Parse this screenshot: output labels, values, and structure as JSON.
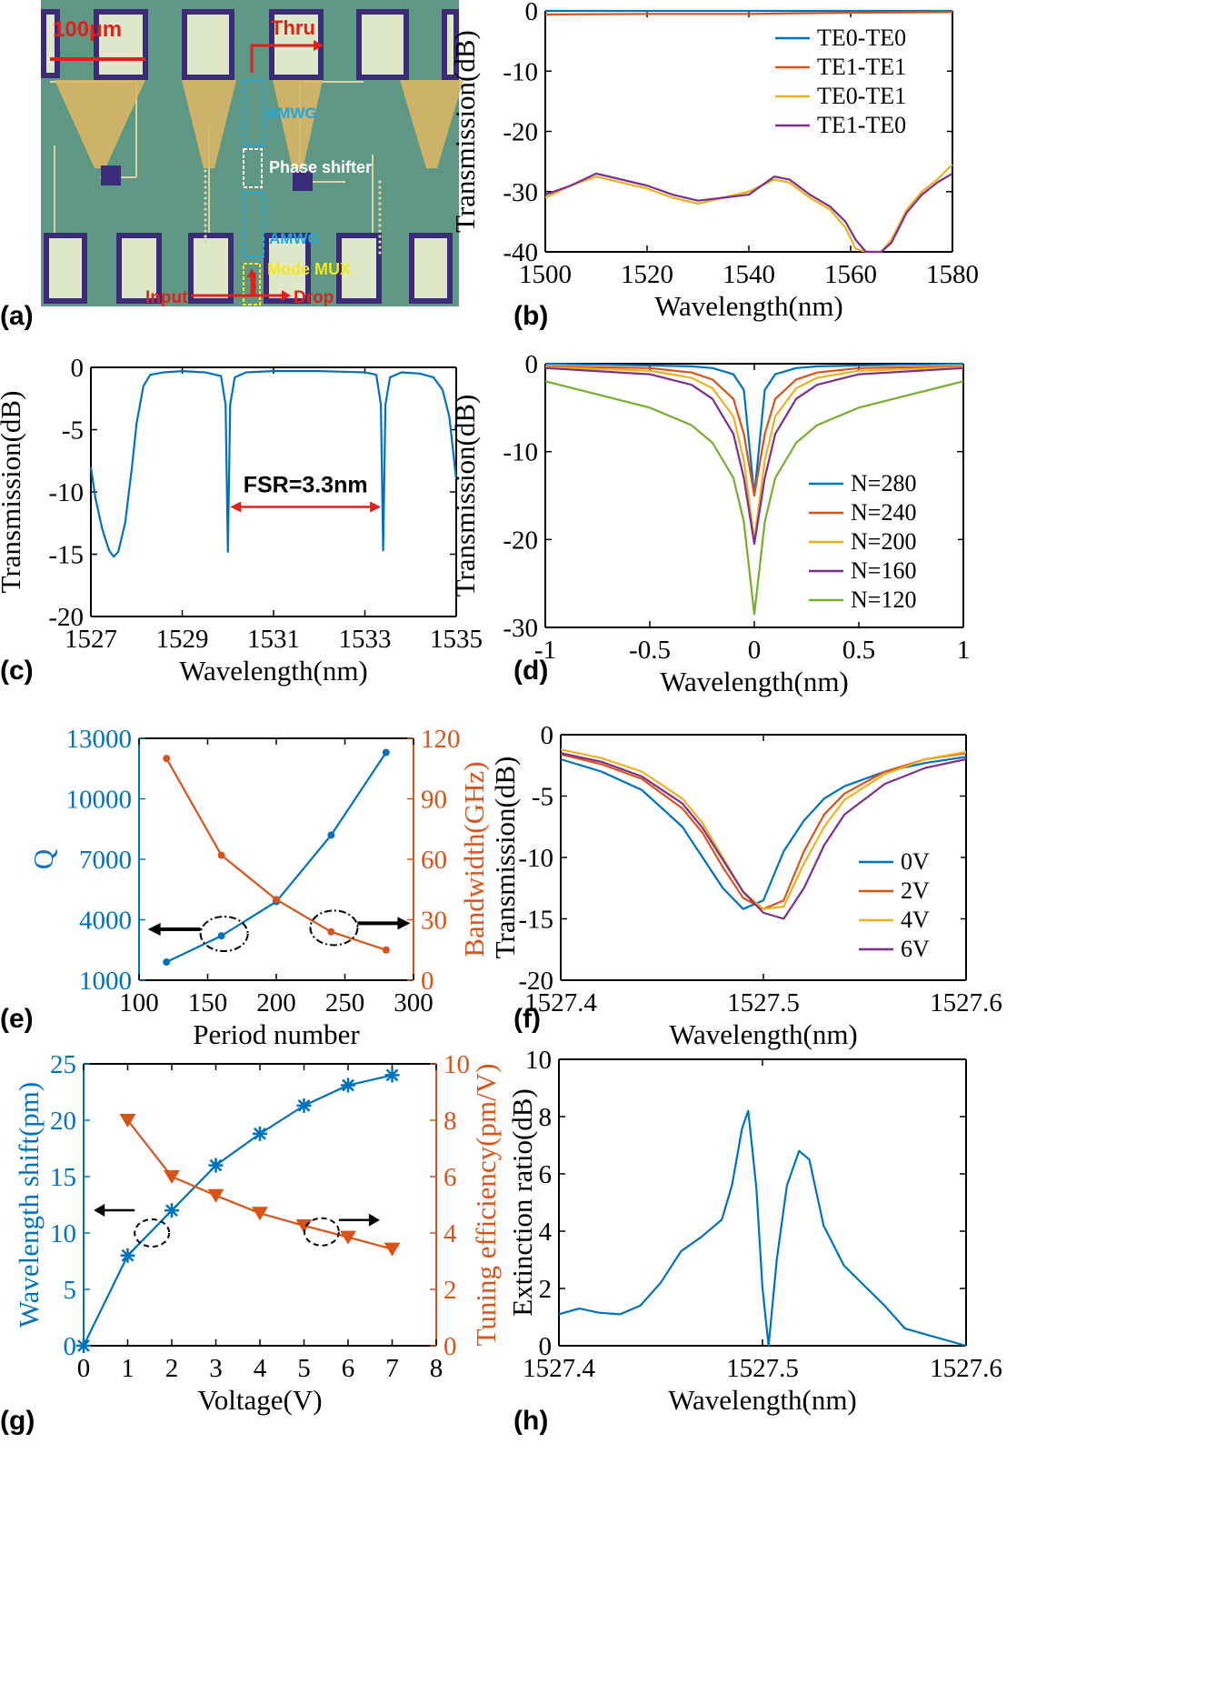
{
  "colors": {
    "blue": "#0072BD",
    "orange": "#D95319",
    "yellow": "#EDB120",
    "purple": "#7E2F8E",
    "green": "#77AC30",
    "black": "#000000",
    "red": "#E0201B",
    "cyan": "#1EA7E1",
    "annot_yellow": "#F2EA1A"
  },
  "panel_labels": [
    "(a)",
    "(b)",
    "(c)",
    "(d)",
    "(e)",
    "(f)",
    "(g)",
    "(h)"
  ],
  "micrograph": {
    "scale_bar": "100μm",
    "thru": "Thru",
    "amwg_top": "AMWG",
    "phase_shifter": "Phase shifter",
    "amwg_bottom": "AMWG",
    "mode_mux": "Mode MUX",
    "input": "Input",
    "drop": "Drop"
  },
  "chart_data": [
    {
      "id": "b",
      "type": "line",
      "xlabel": "Wavelength(nm)",
      "ylabel": "Transmission(dB)",
      "xlim": [
        1500,
        1580
      ],
      "ylim": [
        -40,
        0
      ],
      "xticks": [
        1500,
        1520,
        1540,
        1560,
        1580
      ],
      "yticks": [
        0,
        -10,
        -20,
        -30,
        -40
      ],
      "legend": "top-right",
      "series": [
        {
          "name": "TE0-TE0",
          "color": "#0072BD",
          "x": [
            1500,
            1520,
            1540,
            1560,
            1580
          ],
          "y": [
            0,
            0.1,
            0,
            0.3,
            0.5
          ]
        },
        {
          "name": "TE1-TE1",
          "color": "#D95319",
          "x": [
            1500,
            1520,
            1540,
            1560,
            1580
          ],
          "y": [
            -0.6,
            -0.5,
            -0.5,
            -0.3,
            -0.2
          ]
        },
        {
          "name": "TE0-TE1",
          "color": "#EDB120",
          "x": [
            1500,
            1505,
            1510,
            1515,
            1520,
            1525,
            1530,
            1535,
            1540,
            1545,
            1548,
            1552,
            1556,
            1559,
            1561,
            1563,
            1566,
            1568,
            1571,
            1574,
            1577,
            1580
          ],
          "y": [
            -31,
            -29,
            -27.5,
            -28.5,
            -29.5,
            -31,
            -32,
            -31,
            -30,
            -28,
            -28.5,
            -31,
            -33,
            -36,
            -39.5,
            -40,
            -40,
            -38,
            -33,
            -30,
            -28,
            -25.5
          ]
        },
        {
          "name": "TE1-TE0",
          "color": "#7E2F8E",
          "x": [
            1500,
            1505,
            1510,
            1515,
            1520,
            1525,
            1530,
            1535,
            1540,
            1545,
            1548,
            1552,
            1556,
            1559,
            1561,
            1563,
            1566,
            1568,
            1571,
            1574,
            1577,
            1580
          ],
          "y": [
            -30.5,
            -29,
            -27,
            -28,
            -29,
            -30.5,
            -31.5,
            -31,
            -30.5,
            -27.5,
            -28,
            -30.5,
            -32.5,
            -35,
            -38,
            -40,
            -40,
            -38.5,
            -33.5,
            -30.5,
            -28.5,
            -27
          ]
        }
      ]
    },
    {
      "id": "c",
      "type": "line",
      "xlabel": "Wavelength(nm)",
      "ylabel": "Transmission(dB)",
      "xlim": [
        1527,
        1535
      ],
      "ylim": [
        -20,
        0
      ],
      "xticks": [
        1527,
        1529,
        1531,
        1533,
        1535
      ],
      "yticks": [
        0,
        -5,
        -10,
        -15,
        -20
      ],
      "annotation": "FSR=3.3nm",
      "series": [
        {
          "color": "#0072BD",
          "x": [
            1527,
            1527.1,
            1527.25,
            1527.4,
            1527.5,
            1527.6,
            1527.75,
            1527.9,
            1528,
            1528.15,
            1528.3,
            1528.6,
            1529,
            1529.5,
            1529.85,
            1529.95,
            1530,
            1530.05,
            1530.15,
            1530.4,
            1531,
            1532,
            1533,
            1533.25,
            1533.35,
            1533.4,
            1533.45,
            1533.55,
            1533.8,
            1534.2,
            1534.5,
            1534.7,
            1534.85,
            1535
          ],
          "y": [
            -8,
            -10.5,
            -13,
            -14.7,
            -15.2,
            -14.8,
            -12.5,
            -8,
            -4.5,
            -1.5,
            -0.6,
            -0.4,
            -0.3,
            -0.4,
            -0.7,
            -3,
            -14.8,
            -3,
            -0.8,
            -0.4,
            -0.3,
            -0.3,
            -0.4,
            -0.6,
            -3,
            -14.7,
            -3,
            -0.8,
            -0.4,
            -0.5,
            -0.8,
            -1.8,
            -4,
            -9
          ]
        }
      ]
    },
    {
      "id": "d",
      "type": "line",
      "xlabel": "Wavelength(nm)",
      "ylabel": "Transmission(dB)",
      "xlim": [
        -1,
        1
      ],
      "ylim": [
        -30,
        0
      ],
      "xticks": [
        -1,
        -0.5,
        0,
        0.5,
        1
      ],
      "yticks": [
        0,
        -10,
        -20,
        -30
      ],
      "legend": "bottom-right",
      "x": [
        -1,
        -0.5,
        -0.3,
        -0.2,
        -0.1,
        -0.05,
        0,
        0.05,
        0.1,
        0.2,
        0.3,
        0.5,
        1
      ],
      "series": [
        {
          "name": "N=280",
          "color": "#0072BD",
          "y": [
            0,
            -0.2,
            -0.3,
            -0.5,
            -1.2,
            -3,
            -15,
            -3,
            -1.2,
            -0.5,
            -0.3,
            -0.2,
            0
          ]
        },
        {
          "name": "N=240",
          "color": "#D95319",
          "y": [
            -0.3,
            -0.5,
            -1,
            -1.8,
            -4,
            -8,
            -15,
            -8,
            -4,
            -1.8,
            -1,
            -0.5,
            -0.3
          ]
        },
        {
          "name": "N=200",
          "color": "#EDB120",
          "y": [
            -0.4,
            -0.8,
            -1.6,
            -2.8,
            -6,
            -11,
            -20,
            -11,
            -6,
            -2.8,
            -1.6,
            -0.8,
            -0.4
          ]
        },
        {
          "name": "N=160",
          "color": "#7E2F8E",
          "y": [
            -0.5,
            -1.2,
            -2.4,
            -4,
            -8,
            -13,
            -20.5,
            -13,
            -8,
            -4,
            -2.4,
            -1.2,
            -0.5
          ]
        },
        {
          "name": "N=120",
          "color": "#77AC30",
          "y": [
            -2,
            -5,
            -7,
            -9,
            -13,
            -18,
            -28.5,
            -18,
            -13,
            -9,
            -7,
            -5,
            -2
          ]
        }
      ]
    },
    {
      "id": "e",
      "type": "line",
      "xlabel": "Period number",
      "ylabel": "Q",
      "y2label": "Bandwidth(GHz)",
      "xlim": [
        100,
        300
      ],
      "ylim": [
        1000,
        13000
      ],
      "y2lim": [
        0,
        120
      ],
      "xticks": [
        100,
        150,
        200,
        250,
        300
      ],
      "yticks": [
        1000,
        4000,
        7000,
        10000,
        13000
      ],
      "y2ticks": [
        0,
        30,
        60,
        90,
        120
      ],
      "x": [
        120,
        160,
        200,
        240,
        280
      ],
      "series": [
        {
          "name": "Q",
          "axis": "left",
          "color": "#0072BD",
          "y": [
            1900,
            3200,
            4900,
            8200,
            12300
          ]
        },
        {
          "name": "Bandwidth",
          "axis": "right",
          "color": "#D95319",
          "y": [
            110,
            62,
            40,
            24,
            15
          ]
        }
      ]
    },
    {
      "id": "f",
      "type": "line",
      "xlabel": "Wavelength(nm)",
      "ylabel": "Transmission(dB)",
      "xlim": [
        1527.4,
        1527.6
      ],
      "ylim": [
        -20,
        0
      ],
      "xticks": [
        1527.4,
        1527.5,
        1527.6
      ],
      "yticks": [
        0,
        -5,
        -10,
        -15,
        -20
      ],
      "legend": "bottom-right",
      "x": [
        1527.4,
        1527.42,
        1527.44,
        1527.46,
        1527.47,
        1527.48,
        1527.49,
        1527.5,
        1527.51,
        1527.52,
        1527.53,
        1527.54,
        1527.56,
        1527.58,
        1527.6
      ],
      "series": [
        {
          "name": "0V",
          "color": "#0072BD",
          "y": [
            -2,
            -3,
            -4.5,
            -7.5,
            -10,
            -12.5,
            -14.2,
            -13.5,
            -9.5,
            -7,
            -5.2,
            -4.2,
            -3,
            -2.3,
            -1.8
          ]
        },
        {
          "name": "2V",
          "color": "#D95319",
          "y": [
            -1.6,
            -2.4,
            -3.6,
            -6,
            -8,
            -10.8,
            -13.3,
            -14.2,
            -13.5,
            -9.5,
            -6.5,
            -4.8,
            -3,
            -2,
            -1.5
          ]
        },
        {
          "name": "4V",
          "color": "#EDB120",
          "y": [
            -1.2,
            -1.9,
            -3,
            -5.2,
            -7.2,
            -10,
            -12.8,
            -14.2,
            -14,
            -10.5,
            -7.5,
            -5.3,
            -3.2,
            -2,
            -1.4
          ]
        },
        {
          "name": "6V",
          "color": "#7E2F8E",
          "y": [
            -1.5,
            -2.2,
            -3.4,
            -5.6,
            -7.6,
            -10.2,
            -12.8,
            -14.5,
            -15,
            -12.5,
            -9,
            -6.5,
            -4,
            -2.7,
            -2
          ]
        }
      ]
    },
    {
      "id": "g",
      "type": "line",
      "xlabel": "Voltage(V)",
      "ylabel": "Wavelength shift(pm)",
      "y2label": "Tuning efficiency(pm/V)",
      "xlim": [
        0,
        8
      ],
      "ylim": [
        0,
        25
      ],
      "y2lim": [
        0,
        10
      ],
      "xticks": [
        0,
        1,
        2,
        3,
        4,
        5,
        6,
        7,
        8
      ],
      "yticks": [
        0,
        5,
        10,
        15,
        20,
        25
      ],
      "y2ticks": [
        0,
        2,
        4,
        6,
        8,
        10
      ],
      "series": [
        {
          "name": "Wavelength shift",
          "axis": "left",
          "marker": "asterisk",
          "color": "#0072BD",
          "x": [
            0,
            1,
            2,
            3,
            4,
            5,
            6,
            7
          ],
          "y": [
            0,
            8,
            12,
            16,
            18.8,
            21.3,
            23.1,
            24
          ]
        },
        {
          "name": "Tuning efficiency",
          "axis": "right",
          "marker": "triangle-down",
          "color": "#D95319",
          "x": [
            1,
            2,
            3,
            4,
            5,
            6,
            7
          ],
          "y": [
            8,
            6,
            5.33,
            4.7,
            4.26,
            3.85,
            3.43
          ]
        }
      ]
    },
    {
      "id": "h",
      "type": "line",
      "xlabel": "Wavelength(nm)",
      "ylabel": "Extinction ratio(dB)",
      "xlim": [
        1527.4,
        1527.6
      ],
      "ylim": [
        0,
        10
      ],
      "xticks": [
        1527.4,
        1527.5,
        1527.6
      ],
      "yticks": [
        0,
        2,
        4,
        6,
        8,
        10
      ],
      "series": [
        {
          "color": "#0072BD",
          "x": [
            1527.4,
            1527.41,
            1527.42,
            1527.43,
            1527.44,
            1527.45,
            1527.46,
            1527.47,
            1527.48,
            1527.485,
            1527.49,
            1527.493,
            1527.497,
            1527.5,
            1527.503,
            1527.507,
            1527.512,
            1527.518,
            1527.523,
            1527.53,
            1527.54,
            1527.55,
            1527.56,
            1527.57,
            1527.58,
            1527.6
          ],
          "y": [
            1.1,
            1.3,
            1.15,
            1.1,
            1.4,
            2.2,
            3.3,
            3.8,
            4.4,
            5.6,
            7.6,
            8.2,
            5.5,
            2,
            0,
            3,
            5.6,
            6.8,
            6.5,
            4.2,
            2.8,
            2.1,
            1.4,
            0.6,
            0.4,
            0
          ]
        }
      ]
    }
  ]
}
